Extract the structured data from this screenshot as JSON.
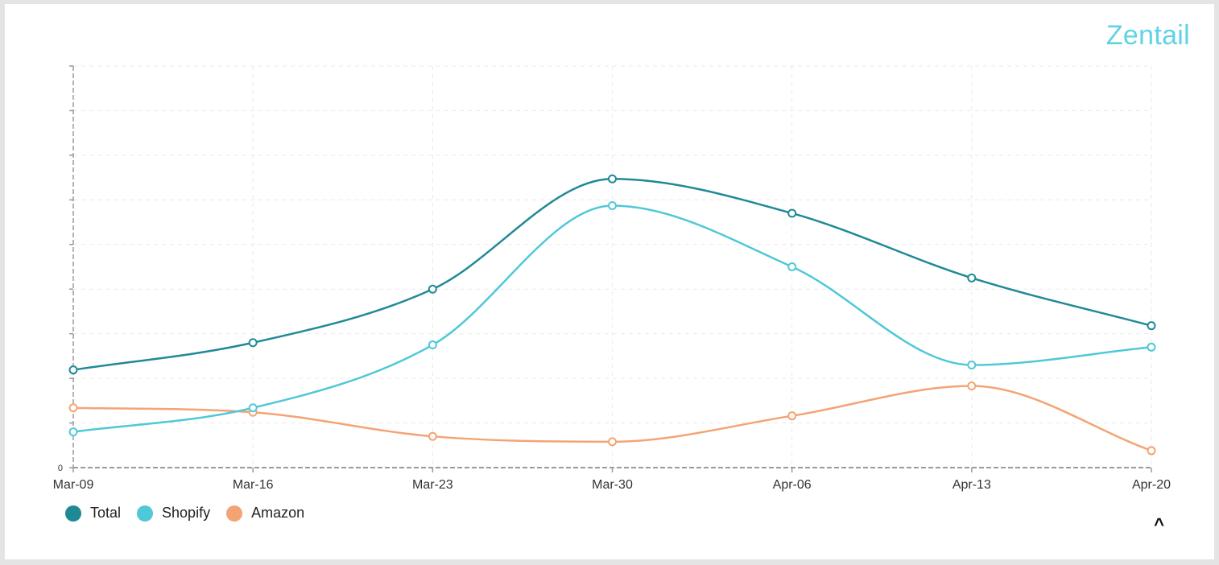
{
  "brand": {
    "name": "Zentail"
  },
  "chart_data": {
    "type": "line",
    "title": "",
    "xlabel": "",
    "ylabel": "",
    "categories": [
      "Mar-09",
      "Mar-16",
      "Mar-23",
      "Mar-30",
      "Apr-06",
      "Apr-13",
      "Apr-20"
    ],
    "y_tick_labels": [
      "0"
    ],
    "ylim": [
      0,
      9
    ],
    "y_ticks": [
      0,
      1,
      2,
      3,
      4,
      5,
      6,
      7,
      8,
      9
    ],
    "grid": true,
    "legend_position": "bottom-left",
    "series": [
      {
        "name": "Total",
        "color": "#1f8a96",
        "values": [
          2.19,
          2.8,
          4.0,
          6.47,
          5.7,
          4.25,
          3.18
        ]
      },
      {
        "name": "Shopify",
        "color": "#4fc8d8",
        "values": [
          0.8,
          1.34,
          2.75,
          5.87,
          4.5,
          2.3,
          2.7
        ]
      },
      {
        "name": "Amazon",
        "color": "#f4a474",
        "values": [
          1.34,
          1.24,
          0.7,
          0.58,
          1.16,
          1.83,
          0.38
        ]
      }
    ]
  },
  "legend": {
    "items": [
      {
        "label": "Total",
        "color": "#1f8a96"
      },
      {
        "label": "Shopify",
        "color": "#4fc8d8"
      },
      {
        "label": "Amazon",
        "color": "#f4a474"
      }
    ]
  },
  "controls": {
    "collapse_icon": "chevron-up-icon",
    "collapse_glyph": "^"
  }
}
